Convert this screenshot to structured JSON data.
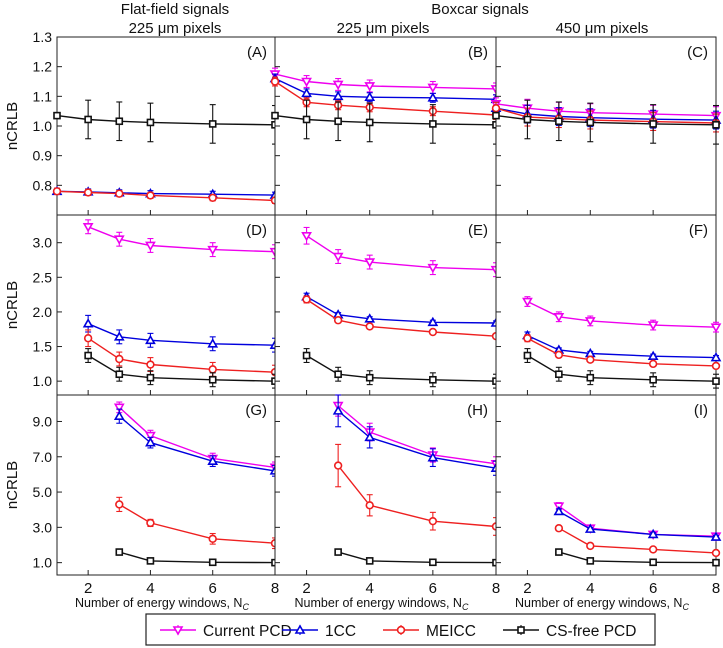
{
  "headers": {
    "col1_line1": "Flat-field signals",
    "col1_line2": "225 μm pixels",
    "col23_line1": "Boxcar signals",
    "col2_line2": "225 μm pixels",
    "col3_line2": "450 μm pixels"
  },
  "legend": [
    {
      "name": "Current PCD",
      "color": "#ee00ee",
      "marker": "triangle-down"
    },
    {
      "name": "1CC",
      "color": "#0000dd",
      "marker": "triangle-up"
    },
    {
      "name": "MEICC",
      "color": "#ee2020",
      "marker": "circle"
    },
    {
      "name": "CS-free PCD",
      "color": "#111111",
      "marker": "square"
    }
  ],
  "chart_data": [
    {
      "type": "line",
      "panel_label": "(A)",
      "ylabel": "nCRLB",
      "ylim": [
        0.7,
        1.3
      ],
      "yticks": [
        0.8,
        0.9,
        1.0,
        1.1,
        1.2,
        1.3
      ],
      "yticklabels": [
        "0.8",
        "0.9",
        "1.0",
        "1.1",
        "1.2",
        "1.3"
      ],
      "xlim": [
        1,
        8
      ],
      "xticks": [
        2,
        4,
        6,
        8
      ],
      "series": [
        {
          "name": "1CC",
          "x": [
            1,
            2,
            3,
            4,
            6,
            8
          ],
          "values": [
            0.78,
            0.778,
            0.775,
            0.772,
            0.77,
            0.767
          ],
          "err": [
            0.01,
            0.01,
            0.01,
            0.01,
            0.01,
            0.01
          ]
        },
        {
          "name": "MEICC",
          "x": [
            1,
            2,
            3,
            4,
            6,
            8
          ],
          "values": [
            0.78,
            0.776,
            0.772,
            0.766,
            0.758,
            0.749
          ],
          "err": [
            0.01,
            0.01,
            0.01,
            0.01,
            0.01,
            0.01
          ]
        },
        {
          "name": "CS-free PCD",
          "x": [
            1,
            2,
            3,
            4,
            6,
            8
          ],
          "values": [
            1.035,
            1.022,
            1.016,
            1.012,
            1.007,
            1.004
          ],
          "err": [
            0.0,
            0.065,
            0.065,
            0.065,
            0.065,
            0.065
          ]
        }
      ]
    },
    {
      "type": "line",
      "panel_label": "(B)",
      "ylim": [
        0.7,
        1.3
      ],
      "xlim": [
        1,
        8
      ],
      "xticks": [
        2,
        4,
        6,
        8
      ],
      "series": [
        {
          "name": "Current PCD",
          "x": [
            1,
            2,
            3,
            4,
            6,
            8
          ],
          "values": [
            1.175,
            1.15,
            1.14,
            1.135,
            1.13,
            1.125
          ],
          "err": [
            0.02,
            0.02,
            0.02,
            0.02,
            0.02,
            0.02
          ]
        },
        {
          "name": "1CC",
          "x": [
            1,
            2,
            3,
            4,
            6,
            8
          ],
          "values": [
            1.16,
            1.11,
            1.1,
            1.097,
            1.095,
            1.09
          ],
          "err": [
            0.015,
            0.015,
            0.015,
            0.015,
            0.015,
            0.015
          ]
        },
        {
          "name": "MEICC",
          "x": [
            1,
            2,
            3,
            4,
            6,
            8
          ],
          "values": [
            1.15,
            1.08,
            1.07,
            1.063,
            1.05,
            1.037
          ],
          "err": [
            0.015,
            0.015,
            0.015,
            0.015,
            0.015,
            0.015
          ]
        },
        {
          "name": "CS-free PCD",
          "x": [
            1,
            2,
            3,
            4,
            6,
            8
          ],
          "values": [
            1.035,
            1.022,
            1.016,
            1.012,
            1.007,
            1.004
          ],
          "err": [
            0.0,
            0.065,
            0.065,
            0.065,
            0.065,
            0.065
          ]
        }
      ]
    },
    {
      "type": "line",
      "panel_label": "(C)",
      "ylim": [
        0.7,
        1.3
      ],
      "xlim": [
        1,
        8
      ],
      "xticks": [
        2,
        4,
        6,
        8
      ],
      "series": [
        {
          "name": "Current PCD",
          "x": [
            1,
            2,
            3,
            4,
            6,
            8
          ],
          "values": [
            1.075,
            1.06,
            1.05,
            1.045,
            1.04,
            1.035
          ],
          "err": [
            0.02,
            0.03,
            0.03,
            0.03,
            0.03,
            0.03
          ]
        },
        {
          "name": "1CC",
          "x": [
            1,
            2,
            3,
            4,
            6,
            8
          ],
          "values": [
            1.06,
            1.04,
            1.032,
            1.028,
            1.023,
            1.02
          ],
          "err": [
            0.02,
            0.03,
            0.03,
            0.03,
            0.03,
            0.03
          ]
        },
        {
          "name": "MEICC",
          "x": [
            1,
            2,
            3,
            4,
            6,
            8
          ],
          "values": [
            1.06,
            1.03,
            1.025,
            1.02,
            1.015,
            1.01
          ],
          "err": [
            0.02,
            0.03,
            0.03,
            0.03,
            0.03,
            0.03
          ]
        },
        {
          "name": "CS-free PCD",
          "x": [
            1,
            2,
            3,
            4,
            6,
            8
          ],
          "values": [
            1.035,
            1.022,
            1.016,
            1.012,
            1.007,
            1.004
          ],
          "err": [
            0.0,
            0.065,
            0.065,
            0.065,
            0.065,
            0.065
          ]
        }
      ]
    },
    {
      "type": "line",
      "panel_label": "(D)",
      "ylabel": "nCRLB",
      "ylim": [
        0.8,
        3.4
      ],
      "yticks": [
        1.0,
        1.5,
        2.0,
        2.5,
        3.0
      ],
      "yticklabels": [
        "1.0",
        "1.5",
        "2.0",
        "2.5",
        "3.0"
      ],
      "xlim": [
        1,
        8
      ],
      "xticks": [
        2,
        4,
        6,
        8
      ],
      "series": [
        {
          "name": "Current PCD",
          "x": [
            2,
            3,
            4,
            6,
            8
          ],
          "values": [
            3.23,
            3.05,
            2.96,
            2.9,
            2.87
          ],
          "err": [
            0.1,
            0.1,
            0.1,
            0.1,
            0.1
          ]
        },
        {
          "name": "1CC",
          "x": [
            2,
            3,
            4,
            6,
            8
          ],
          "values": [
            1.83,
            1.64,
            1.59,
            1.54,
            1.52
          ],
          "err": [
            0.12,
            0.1,
            0.1,
            0.1,
            0.1
          ]
        },
        {
          "name": "MEICC",
          "x": [
            2,
            3,
            4,
            6,
            8
          ],
          "values": [
            1.62,
            1.32,
            1.24,
            1.17,
            1.13
          ],
          "err": [
            0.12,
            0.1,
            0.1,
            0.1,
            0.1
          ]
        },
        {
          "name": "CS-free PCD",
          "x": [
            2,
            3,
            4,
            6,
            8
          ],
          "values": [
            1.37,
            1.1,
            1.05,
            1.02,
            1.0
          ],
          "err": [
            0.1,
            0.1,
            0.1,
            0.1,
            0.1
          ]
        }
      ]
    },
    {
      "type": "line",
      "panel_label": "(E)",
      "ylim": [
        0.8,
        3.4
      ],
      "xlim": [
        1,
        8
      ],
      "xticks": [
        2,
        4,
        6,
        8
      ],
      "series": [
        {
          "name": "Current PCD",
          "x": [
            2,
            3,
            4,
            6,
            8
          ],
          "values": [
            3.1,
            2.8,
            2.72,
            2.64,
            2.61
          ],
          "err": [
            0.12,
            0.1,
            0.1,
            0.1,
            0.1
          ]
        },
        {
          "name": "1CC",
          "x": [
            2,
            3,
            4,
            6,
            8
          ],
          "values": [
            2.22,
            1.96,
            1.9,
            1.85,
            1.84
          ],
          "err": [
            0.05,
            0.03,
            0.03,
            0.03,
            0.03
          ]
        },
        {
          "name": "MEICC",
          "x": [
            2,
            3,
            4,
            6,
            8
          ],
          "values": [
            2.18,
            1.88,
            1.79,
            1.71,
            1.65
          ],
          "err": [
            0.05,
            0.03,
            0.03,
            0.03,
            0.03
          ]
        },
        {
          "name": "CS-free PCD",
          "x": [
            2,
            3,
            4,
            6,
            8
          ],
          "values": [
            1.37,
            1.1,
            1.05,
            1.02,
            1.0
          ],
          "err": [
            0.1,
            0.1,
            0.1,
            0.1,
            0.1
          ]
        }
      ]
    },
    {
      "type": "line",
      "panel_label": "(F)",
      "ylim": [
        0.8,
        3.4
      ],
      "xlim": [
        1,
        8
      ],
      "xticks": [
        2,
        4,
        6,
        8
      ],
      "series": [
        {
          "name": "Current PCD",
          "x": [
            2,
            3,
            4,
            6,
            8
          ],
          "values": [
            2.15,
            1.93,
            1.87,
            1.81,
            1.78
          ],
          "err": [
            0.07,
            0.07,
            0.07,
            0.07,
            0.07
          ]
        },
        {
          "name": "1CC",
          "x": [
            2,
            3,
            4,
            6,
            8
          ],
          "values": [
            1.66,
            1.45,
            1.4,
            1.36,
            1.34
          ],
          "err": [
            0.05,
            0.03,
            0.03,
            0.03,
            0.03
          ]
        },
        {
          "name": "MEICC",
          "x": [
            2,
            3,
            4,
            6,
            8
          ],
          "values": [
            1.62,
            1.38,
            1.31,
            1.25,
            1.22
          ],
          "err": [
            0.05,
            0.03,
            0.03,
            0.03,
            0.03
          ]
        },
        {
          "name": "CS-free PCD",
          "x": [
            2,
            3,
            4,
            6,
            8
          ],
          "values": [
            1.37,
            1.1,
            1.05,
            1.02,
            1.0
          ],
          "err": [
            0.1,
            0.1,
            0.1,
            0.1,
            0.1
          ]
        }
      ]
    },
    {
      "type": "line",
      "panel_label": "(G)",
      "ylabel": "nCRLB",
      "ylim": [
        0.3,
        10.5
      ],
      "yticks": [
        1.0,
        3.0,
        5.0,
        7.0,
        9.0
      ],
      "yticklabels": [
        "1.0",
        "3.0",
        "5.0",
        "7.0",
        "9.0"
      ],
      "xlim": [
        1,
        8
      ],
      "xticks": [
        2,
        4,
        6,
        8
      ],
      "series": [
        {
          "name": "Current PCD",
          "x": [
            3,
            4,
            6,
            8
          ],
          "values": [
            9.8,
            8.2,
            6.9,
            6.4
          ],
          "err": [
            0.3,
            0.3,
            0.3,
            0.3
          ]
        },
        {
          "name": "1CC",
          "x": [
            3,
            4,
            6,
            8
          ],
          "values": [
            9.3,
            7.8,
            6.75,
            6.2
          ],
          "err": [
            0.4,
            0.3,
            0.3,
            0.3
          ]
        },
        {
          "name": "MEICC",
          "x": [
            3,
            4,
            6,
            8
          ],
          "values": [
            4.3,
            3.25,
            2.35,
            2.1
          ],
          "err": [
            0.4,
            0.2,
            0.3,
            0.3
          ]
        },
        {
          "name": "CS-free PCD",
          "x": [
            3,
            4,
            6,
            8
          ],
          "values": [
            1.6,
            1.1,
            1.02,
            1.0
          ],
          "err": [
            0.05,
            0.05,
            0.05,
            0.05
          ]
        }
      ]
    },
    {
      "type": "line",
      "panel_label": "(H)",
      "ylim": [
        0.3,
        10.5
      ],
      "xlim": [
        1,
        8
      ],
      "xticks": [
        2,
        4,
        6,
        8
      ],
      "series": [
        {
          "name": "Current PCD",
          "x": [
            3,
            4,
            6,
            8
          ],
          "values": [
            9.9,
            8.4,
            7.1,
            6.6
          ],
          "err": [
            0.6,
            0.5,
            0.4,
            0.4
          ]
        },
        {
          "name": "1CC",
          "x": [
            3,
            4,
            6,
            8
          ],
          "values": [
            9.6,
            8.1,
            6.95,
            6.35
          ],
          "err": [
            0.9,
            0.6,
            0.5,
            0.4
          ]
        },
        {
          "name": "MEICC",
          "x": [
            3,
            4,
            6,
            8
          ],
          "values": [
            6.5,
            4.25,
            3.35,
            3.05
          ],
          "err": [
            1.2,
            0.6,
            0.5,
            0.5
          ]
        },
        {
          "name": "CS-free PCD",
          "x": [
            3,
            4,
            6,
            8
          ],
          "values": [
            1.6,
            1.1,
            1.02,
            1.0
          ],
          "err": [
            0.05,
            0.05,
            0.05,
            0.05
          ]
        }
      ]
    },
    {
      "type": "line",
      "panel_label": "(I)",
      "ylim": [
        0.3,
        10.5
      ],
      "xlim": [
        1,
        8
      ],
      "xticks": [
        2,
        4,
        6,
        8
      ],
      "series": [
        {
          "name": "Current PCD",
          "x": [
            3,
            4,
            6,
            8
          ],
          "values": [
            4.2,
            2.95,
            2.6,
            2.5
          ],
          "err": [
            0.2,
            0.1,
            0.1,
            0.1
          ]
        },
        {
          "name": "1CC",
          "x": [
            3,
            4,
            6,
            8
          ],
          "values": [
            3.9,
            2.9,
            2.6,
            2.45
          ],
          "err": [
            0.15,
            0.1,
            0.1,
            0.1
          ]
        },
        {
          "name": "MEICC",
          "x": [
            3,
            4,
            6,
            8
          ],
          "values": [
            2.95,
            1.95,
            1.75,
            1.55
          ],
          "err": [
            0.1,
            0.1,
            0.1,
            0.1
          ]
        },
        {
          "name": "CS-free PCD",
          "x": [
            3,
            4,
            6,
            8
          ],
          "values": [
            1.6,
            1.1,
            1.02,
            1.0
          ],
          "err": [
            0.05,
            0.05,
            0.05,
            0.05
          ]
        }
      ]
    }
  ],
  "x_axis_label": "Number of energy windows, N",
  "x_axis_label_sub": "C"
}
